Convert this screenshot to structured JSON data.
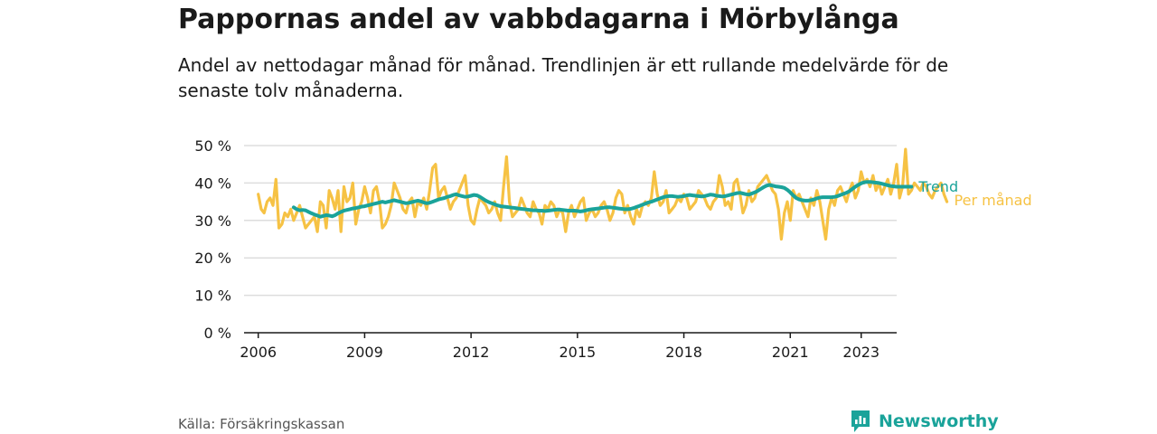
{
  "title": "Pappornas andel av vabbdagarna i Mörbylånga",
  "subtitle": "Andel av nettodagar månad för månad. Trendlinjen är ett rullande medelvärde för de senaste tolv månaderna.",
  "source": "Källa: Försäkringskassan",
  "brand": "Newsworthy",
  "colors": {
    "monthly": "#f6c244",
    "trend": "#1aa39a",
    "grid": "#dddddd",
    "axis": "#1a1a1a",
    "brand": "#1aa39a"
  },
  "chart_data": {
    "type": "line",
    "x_unit": "year",
    "ylim": [
      0,
      50
    ],
    "xlim": [
      2005.6,
      2024.0
    ],
    "y_ticks": [
      0,
      10,
      20,
      30,
      40,
      50
    ],
    "y_tick_labels": [
      "0 %",
      "10 %",
      "20 %",
      "30 %",
      "40 %",
      "50 %"
    ],
    "x_ticks": [
      2006,
      2009,
      2012,
      2015,
      2018,
      2021,
      2023
    ],
    "x_tick_labels": [
      "2006",
      "2009",
      "2012",
      "2015",
      "2018",
      "2021",
      "2023"
    ],
    "grid": true,
    "series": [
      {
        "name": "Per månad",
        "x_start": 2006.0,
        "x_step": 0.08333,
        "values": [
          37,
          33,
          32,
          35,
          36,
          34,
          41,
          28,
          29,
          32,
          31,
          33,
          30,
          32,
          34,
          31,
          28,
          29,
          30,
          31,
          27,
          35,
          34,
          28,
          38,
          36,
          33,
          38,
          27,
          39,
          35,
          36,
          40,
          29,
          33,
          35,
          39,
          36,
          32,
          38,
          39,
          35,
          28,
          29,
          31,
          34,
          40,
          38,
          36,
          33,
          32,
          35,
          36,
          31,
          35,
          34,
          36,
          33,
          38,
          44,
          45,
          36,
          38,
          39,
          36,
          33,
          35,
          36,
          38,
          40,
          42,
          34,
          30,
          29,
          33,
          36,
          35,
          34,
          32,
          33,
          35,
          32,
          30,
          39,
          47,
          35,
          31,
          32,
          33,
          36,
          34,
          32,
          31,
          35,
          33,
          32,
          29,
          34,
          33,
          35,
          34,
          31,
          33,
          32,
          27,
          32,
          34,
          31,
          33,
          35,
          36,
          30,
          32,
          33,
          31,
          32,
          34,
          35,
          33,
          30,
          32,
          36,
          38,
          37,
          32,
          34,
          31,
          29,
          33,
          31,
          34,
          35,
          34,
          36,
          43,
          37,
          34,
          35,
          38,
          32,
          33,
          34,
          36,
          35,
          37,
          36,
          33,
          34,
          35,
          38,
          37,
          36,
          34,
          33,
          35,
          36,
          42,
          39,
          34,
          35,
          33,
          40,
          41,
          37,
          32,
          34,
          38,
          35,
          36,
          39,
          40,
          41,
          42,
          40,
          38,
          37,
          33,
          25,
          32,
          35,
          30,
          38,
          36,
          37,
          35,
          33,
          31,
          36,
          34,
          38,
          35,
          30,
          25,
          33,
          36,
          34,
          38,
          39,
          37,
          35,
          38,
          40,
          36,
          38,
          43,
          40,
          41,
          39,
          42,
          38,
          40,
          37,
          39,
          41,
          37,
          40,
          45,
          36,
          39,
          49,
          37,
          38,
          40,
          39,
          38,
          40,
          39,
          37,
          36,
          38,
          39,
          40,
          37,
          35
        ]
      },
      {
        "name": "Trend",
        "x_start": 2007.0,
        "x_step": 0.08333,
        "values": [
          33.5,
          33.0,
          32.7,
          32.8,
          32.7,
          32.3,
          31.9,
          31.6,
          31.3,
          31.0,
          31.2,
          31.4,
          31.3,
          31.1,
          31.4,
          31.9,
          32.3,
          32.6,
          32.8,
          33.0,
          33.2,
          33.3,
          33.5,
          33.7,
          33.8,
          34.0,
          34.2,
          34.4,
          34.6,
          34.8,
          35.0,
          34.8,
          35.0,
          35.2,
          35.4,
          35.2,
          35.0,
          34.8,
          34.6,
          34.7,
          34.9,
          35.1,
          35.3,
          35.1,
          34.8,
          34.6,
          34.7,
          35.0,
          35.3,
          35.6,
          35.8,
          36.0,
          36.3,
          36.5,
          36.8,
          37.0,
          36.7,
          36.5,
          36.3,
          36.4,
          36.6,
          36.8,
          36.7,
          36.3,
          35.8,
          35.3,
          34.9,
          34.6,
          34.3,
          34.0,
          33.8,
          33.7,
          33.6,
          33.5,
          33.4,
          33.3,
          33.2,
          33.1,
          33.0,
          32.9,
          32.8,
          32.7,
          32.7,
          32.6,
          32.6,
          32.5,
          32.6,
          32.7,
          32.8,
          32.9,
          32.9,
          32.8,
          32.7,
          32.6,
          32.6,
          32.6,
          32.5,
          32.4,
          32.5,
          32.7,
          32.9,
          33.0,
          33.1,
          33.2,
          33.3,
          33.4,
          33.5,
          33.5,
          33.4,
          33.3,
          33.2,
          33.1,
          33.0,
          33.0,
          33.1,
          33.3,
          33.6,
          33.9,
          34.2,
          34.5,
          34.8,
          35.0,
          35.3,
          35.6,
          35.9,
          36.2,
          36.4,
          36.5,
          36.5,
          36.4,
          36.3,
          36.4,
          36.5,
          36.7,
          36.8,
          36.7,
          36.6,
          36.5,
          36.4,
          36.5,
          36.7,
          36.9,
          36.8,
          36.6,
          36.5,
          36.4,
          36.5,
          36.7,
          36.9,
          37.1,
          37.3,
          37.4,
          37.2,
          37.0,
          36.9,
          37.2,
          37.5,
          37.9,
          38.4,
          38.9,
          39.3,
          39.5,
          39.3,
          39.1,
          39.0,
          38.9,
          38.7,
          38.2,
          37.5,
          36.7,
          36.0,
          35.6,
          35.4,
          35.3,
          35.3,
          35.4,
          35.6,
          35.9,
          36.1,
          36.2,
          36.2,
          36.2,
          36.2,
          36.3,
          36.5,
          36.8,
          37.1,
          37.4,
          37.8,
          38.4,
          39.0,
          39.5,
          39.9,
          40.2,
          40.3,
          40.3,
          40.2,
          40.1,
          40.0,
          39.8,
          39.6,
          39.4,
          39.2,
          39.1,
          39.0,
          39.0,
          39.0,
          39.0,
          39.0,
          39.0
        ]
      }
    ]
  }
}
